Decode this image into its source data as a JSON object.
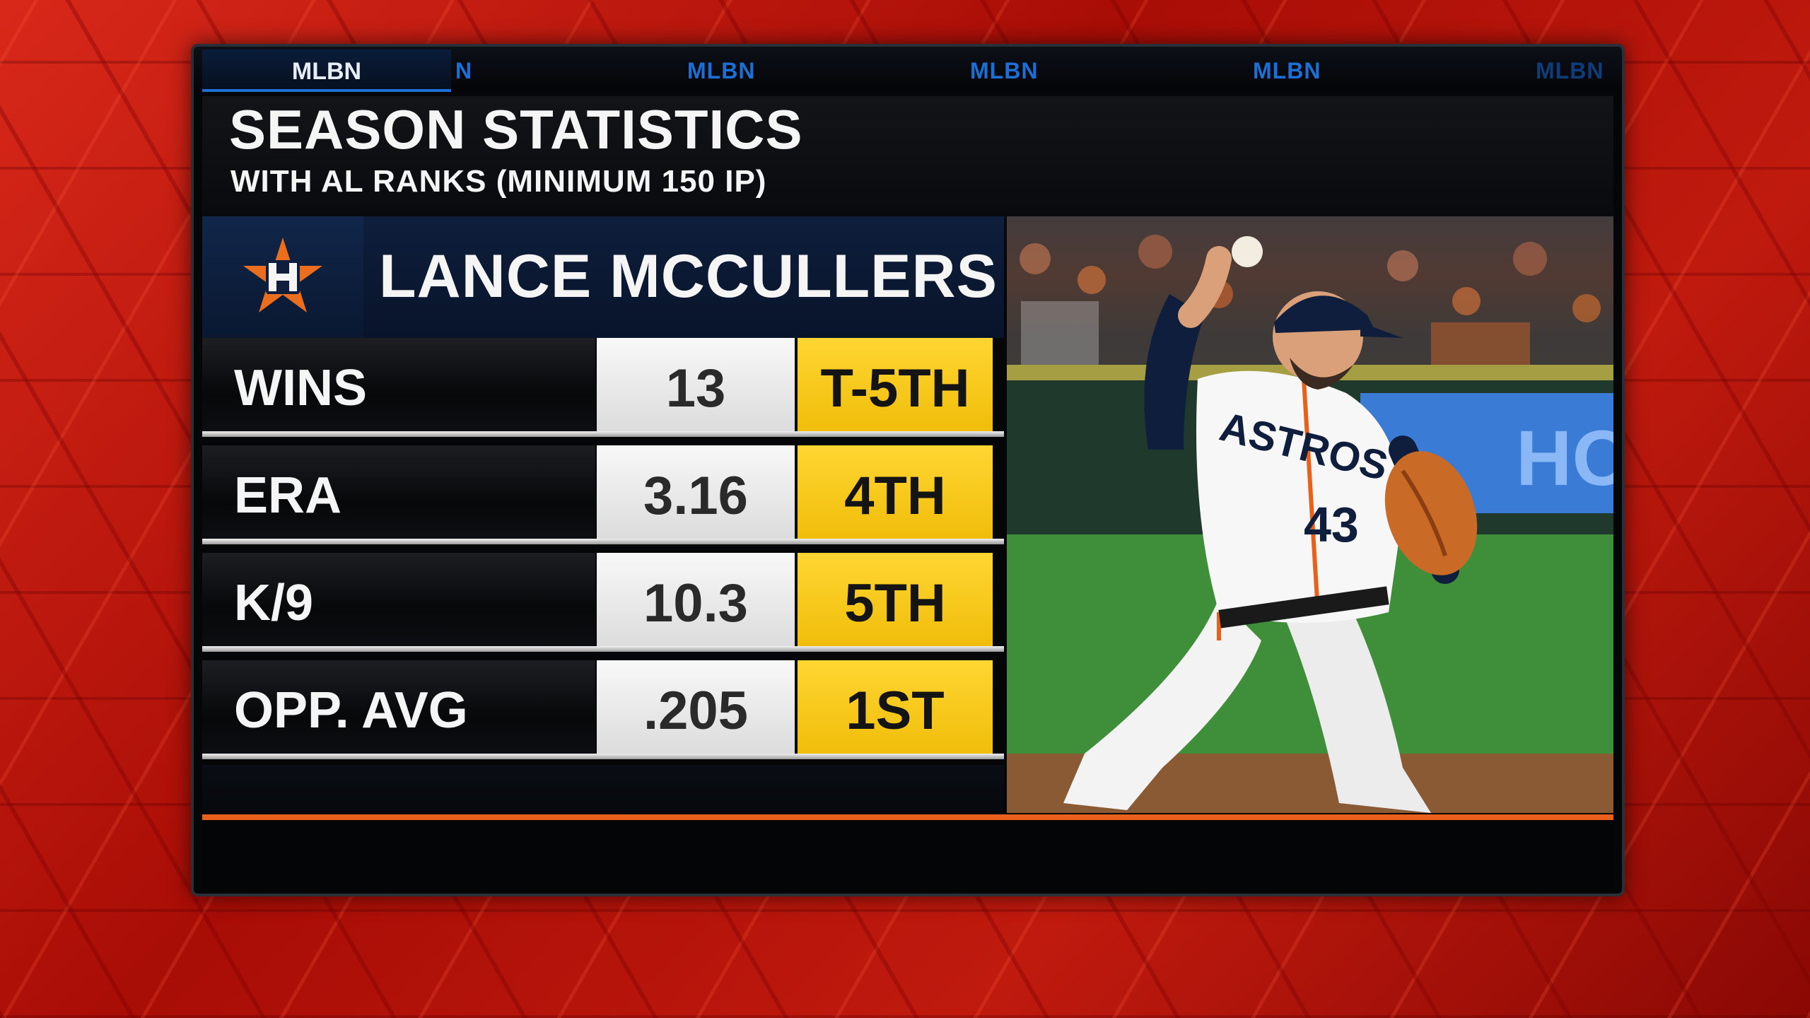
{
  "network": {
    "active_tab": "MLBN",
    "ticker": [
      "N",
      "MLBN",
      "MLBN",
      "MLBN",
      "MLBN"
    ]
  },
  "graphic": {
    "title": "SEASON STATISTICS",
    "subtitle": "WITH AL RANKS (MINIMUM 150 IP)"
  },
  "player": {
    "name": "LANCE MCCULLERS JR.",
    "team_logo": "astros-star-h-logo",
    "jersey_number": "43",
    "jersey_text": "ASTROS"
  },
  "stats": [
    {
      "label": "WINS",
      "value": "13",
      "rank": "T-5TH"
    },
    {
      "label": "ERA",
      "value": "3.16",
      "rank": "4TH"
    },
    {
      "label": "K/9",
      "value": "10.3",
      "rank": "5TH"
    },
    {
      "label": "OPP. AVG",
      "value": ".205",
      "rank": "1ST"
    }
  ],
  "colors": {
    "rank_highlight": "#f5c518",
    "accent_orange": "#e8601a",
    "navy": "#0e1e3c",
    "network_blue": "#1d6fd6"
  }
}
